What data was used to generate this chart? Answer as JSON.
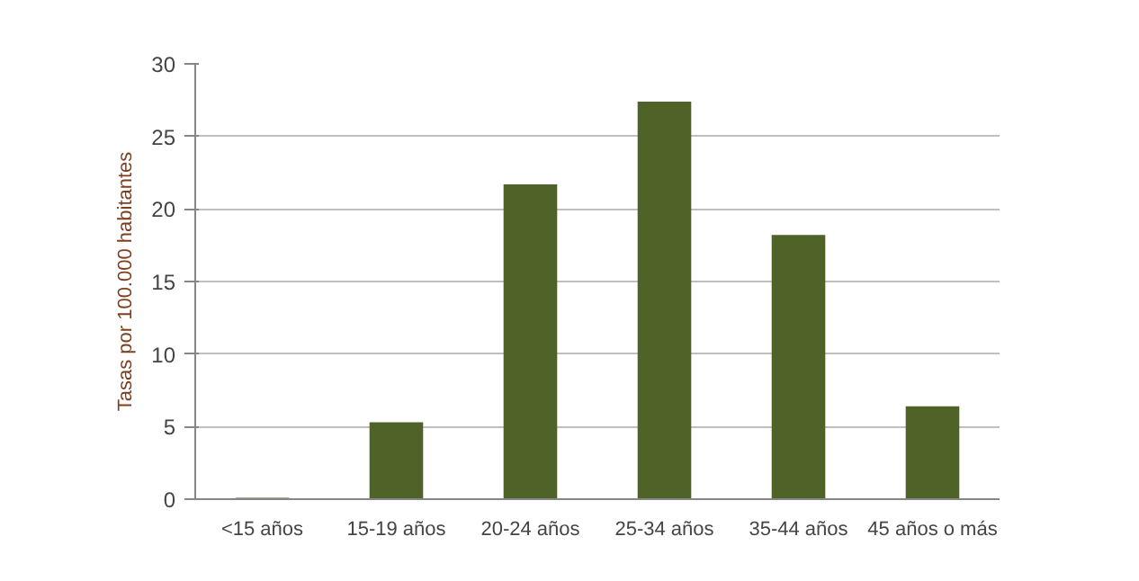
{
  "chart_data": {
    "type": "bar",
    "ylabel": "Tasas por 100.000 habitantes",
    "categories": [
      "<15 años",
      "15-19 años",
      "20-24 años",
      "25-34 años",
      "35-44 años",
      "45 años o más"
    ],
    "values": [
      0.1,
      5.3,
      21.7,
      27.4,
      18.2,
      6.4
    ],
    "color": "#4f6228",
    "ylim": [
      0,
      30
    ],
    "yticks": [
      0,
      5,
      10,
      15,
      20,
      25,
      30
    ],
    "grid": "y"
  }
}
